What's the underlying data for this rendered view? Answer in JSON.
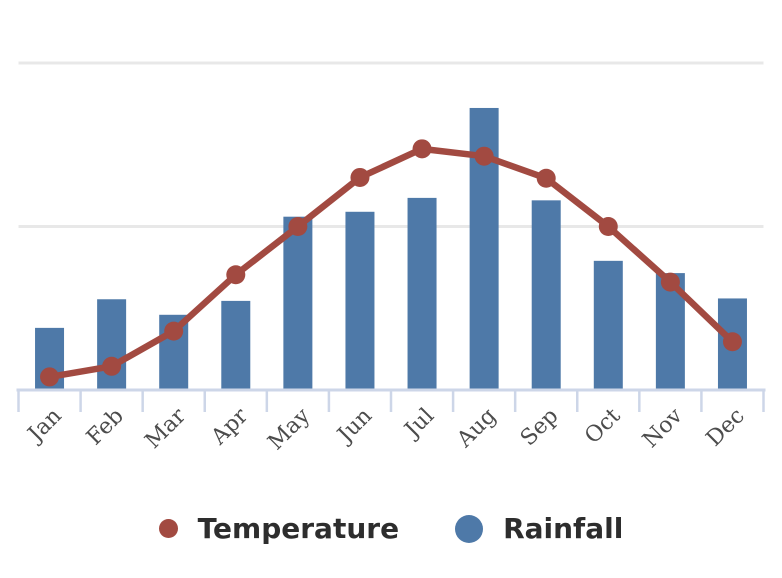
{
  "chart_data": {
    "type": "combo-bar-line",
    "title": "",
    "xlabel": "",
    "ylabel": "",
    "categories": [
      "Jan",
      "Feb",
      "Mar",
      "Apr",
      "May",
      "Jun",
      "Jul",
      "Aug",
      "Sep",
      "Oct",
      "Nov",
      "Dec"
    ],
    "series": [
      {
        "name": "Temperature",
        "type": "line",
        "color": "#a24a41",
        "values": [
          1.6,
          2.9,
          7.2,
          14.1,
          20.0,
          26.0,
          29.5,
          28.6,
          25.9,
          20.0,
          13.2,
          5.9
        ]
      },
      {
        "name": "Rainfall",
        "type": "bar",
        "color": "#4e79a8",
        "values": [
          7.6,
          11.1,
          9.2,
          10.9,
          21.2,
          21.8,
          23.5,
          34.5,
          23.2,
          15.8,
          14.3,
          11.2
        ]
      }
    ],
    "ylim": [
      0,
      43
    ],
    "y_gridlines": [
      20,
      40
    ],
    "y_axis_labels_visible": false,
    "x_tick_label_rotation": -45,
    "grid": "horizontal",
    "legend_position": "bottom"
  },
  "colors": {
    "background": "#ffffff",
    "grid": "#e8e8e8",
    "axis": "#cdd6e8",
    "tick": "#cdd6e8",
    "x_label_text": "#4c4c4c",
    "legend_text": "#2d2d2d"
  }
}
